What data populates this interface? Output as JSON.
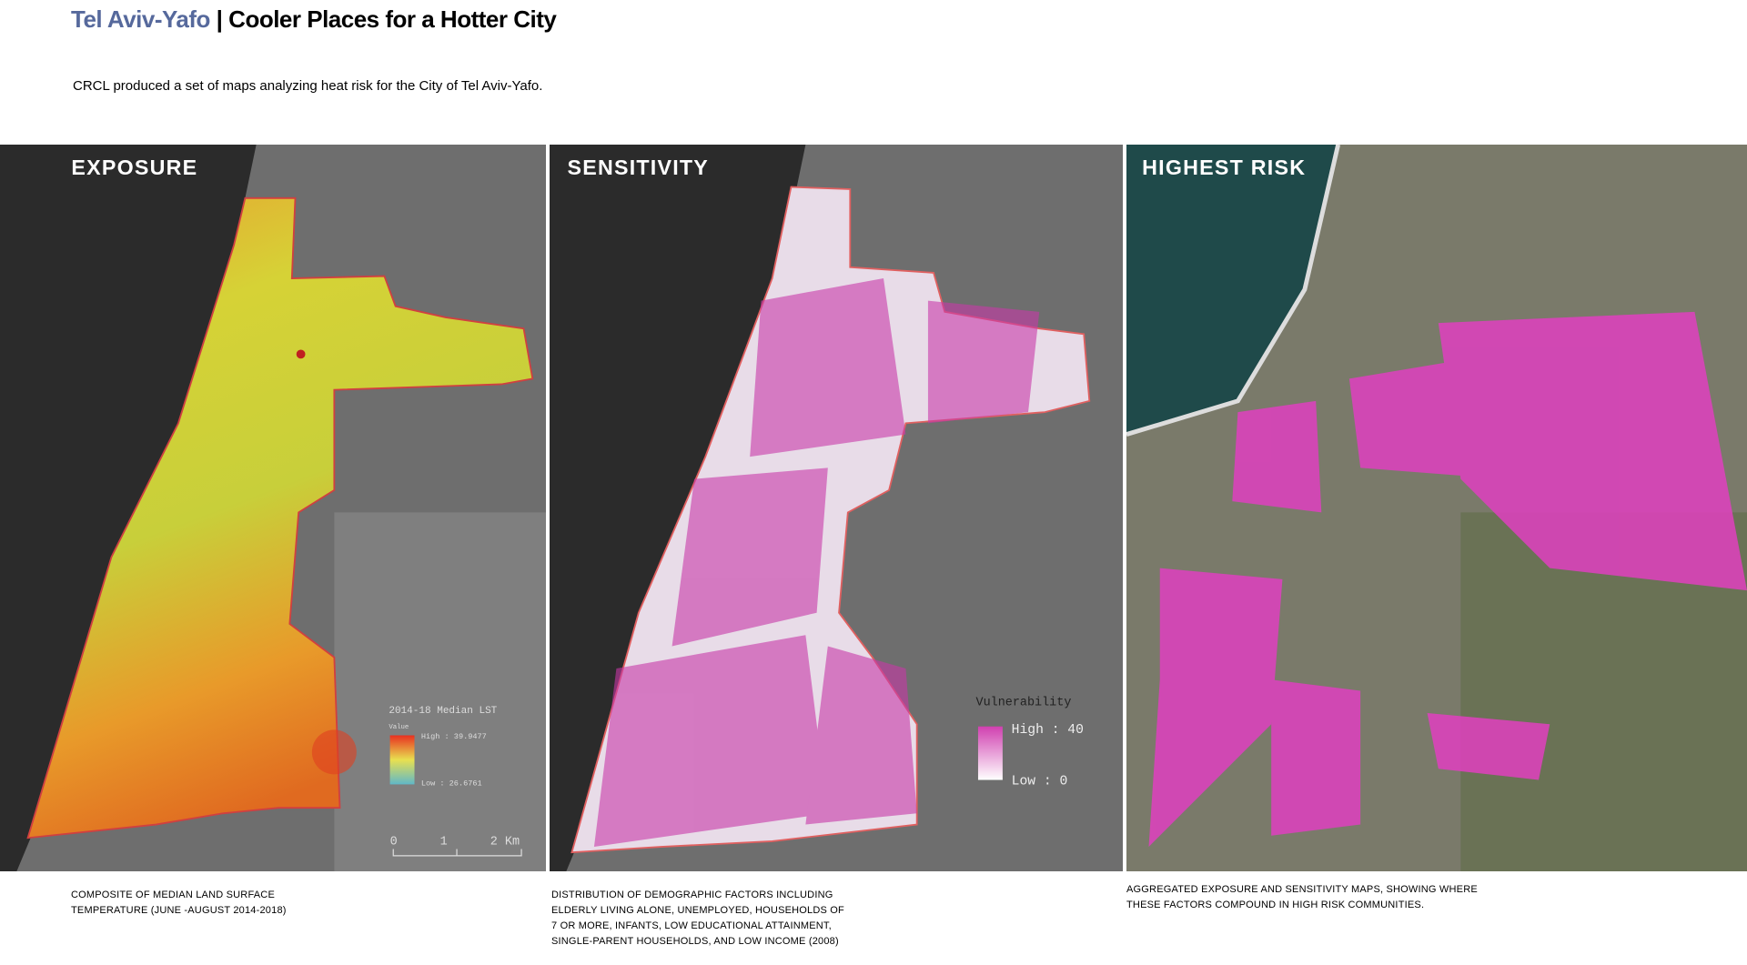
{
  "header": {
    "title_place": "Tel Aviv-Yafo",
    "separator": "|",
    "title_main": "Cooler Places for a Hotter City",
    "intro": "CRCL produced a set of maps analyzing heat risk for the City of Tel Aviv-Yafo."
  },
  "panels": [
    {
      "title": "EXPOSURE",
      "legend": {
        "title": "2014-18 Median LST",
        "field": "Value",
        "high": "High : 39.9477",
        "low": "Low : 26.6761"
      },
      "scale": [
        "0",
        "1",
        "2 Km"
      ],
      "caption": [
        "COMPOSITE OF MEDIAN LAND SURFACE",
        "TEMPERATURE (JUNE -AUGUST 2014-2018)"
      ]
    },
    {
      "title": "SENSITIVITY",
      "legend": {
        "title": "Vulnerability",
        "high": "High : 40",
        "low": "Low : 0"
      },
      "caption": [
        "DISTRIBUTION OF DEMOGRAPHIC FACTORS INCLUDING",
        "ELDERLY LIVING ALONE, UNEMPLOYED, HOUSEHOLDS OF",
        "7 OR MORE, INFANTS, LOW EDUCATIONAL ATTAINMENT,",
        "SINGLE-PARENT HOUSEHOLDS, AND LOW INCOME (2008)"
      ]
    },
    {
      "title": "HIGHEST RISK",
      "caption": [
        "AGGREGATED EXPOSURE AND SENSITIVITY MAPS, SHOWING WHERE",
        "THESE FACTORS COMPOUND IN HIGH RISK COMMUNITIES."
      ]
    }
  ]
}
